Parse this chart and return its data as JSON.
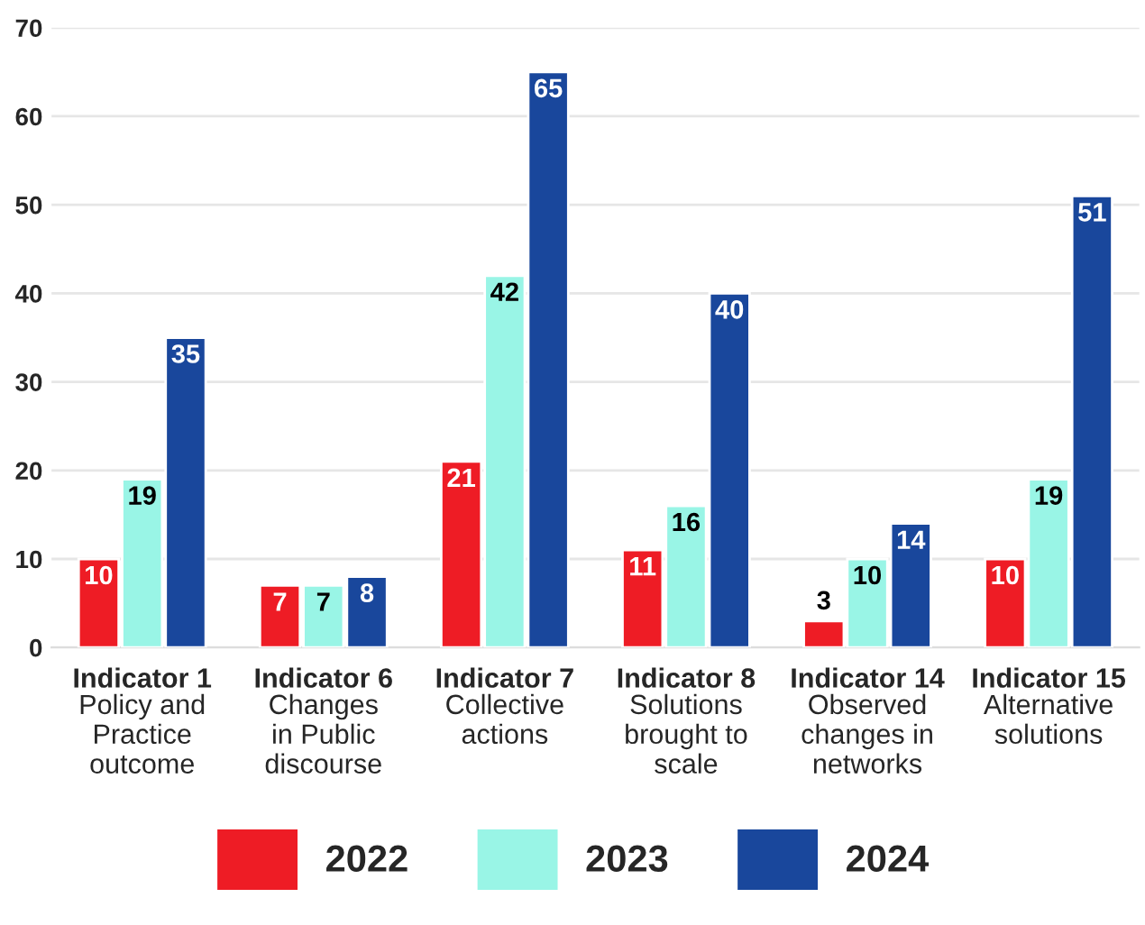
{
  "chart_data": {
    "type": "bar",
    "categories": [
      "Indicator 1\nPolicy and\nPractice\noutcome",
      "Indicator 6\nChanges\nin Public\ndiscourse",
      "Indicator 7\nCollective\nactions",
      "Indicator 8\nSolutions\nbrought to\nscale",
      "Indicator 14\nObserved\nchanges in\nnetworks",
      "Indicator 15\nAlternative\nsolutions"
    ],
    "series": [
      {
        "name": "2022",
        "color": "#ee1c25",
        "values": [
          10,
          7,
          21,
          11,
          3,
          10
        ]
      },
      {
        "name": "2023",
        "color": "#99f5e6",
        "values": [
          19,
          7,
          42,
          16,
          10,
          19
        ]
      },
      {
        "name": "2024",
        "color": "#19479c",
        "values": [
          35,
          8,
          65,
          40,
          14,
          51
        ]
      }
    ],
    "ylim": [
      0,
      70
    ],
    "yticks": [
      0,
      10,
      20,
      30,
      40,
      50,
      60,
      70
    ],
    "grid": "y",
    "legend": "bottom",
    "data_labels": true
  }
}
